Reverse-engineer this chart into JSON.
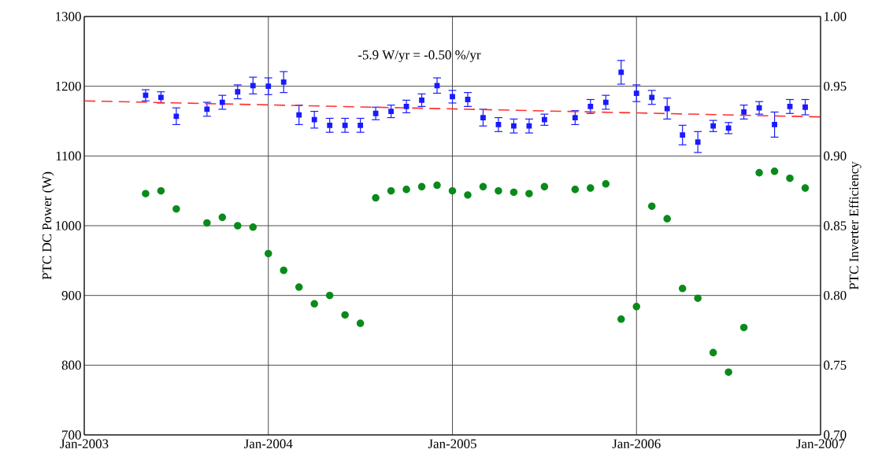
{
  "chart_data": {
    "type": "scatter",
    "annotations": [
      "-5.9 W/yr = -0.50 %/yr"
    ],
    "ylabel": "PTC DC Power (W)",
    "y2label": "PTC Inverter Efficiency",
    "xlim": [
      "2003-01",
      "2007-01"
    ],
    "xticks": [
      {
        "value": "2003-01",
        "label": "Jan-2003"
      },
      {
        "value": "2004-01",
        "label": "Jan-2004"
      },
      {
        "value": "2005-01",
        "label": "Jan-2005"
      },
      {
        "value": "2006-01",
        "label": "Jan-2006"
      },
      {
        "value": "2007-01",
        "label": "Jan-2007"
      }
    ],
    "ylim": [
      700,
      1300
    ],
    "yticks": [
      700,
      800,
      900,
      1000,
      1100,
      1200,
      1300
    ],
    "y2lim": [
      0.7,
      1.0
    ],
    "y2ticks": [
      {
        "value": 0.7,
        "label": "0.70"
      },
      {
        "value": 0.75,
        "label": "0.75"
      },
      {
        "value": 0.8,
        "label": "0.80"
      },
      {
        "value": 0.85,
        "label": "0.85"
      },
      {
        "value": 0.9,
        "label": "0.90"
      },
      {
        "value": 0.95,
        "label": "0.95"
      },
      {
        "value": 1.0,
        "label": "1.00"
      }
    ],
    "grid": true,
    "series": [
      {
        "color": "#1a1aff",
        "marker": "square",
        "x": [
          "2003-05",
          "2003-06",
          "2003-07",
          "2003-09",
          "2003-10",
          "2003-11",
          "2003-12",
          "2004-01",
          "2004-02",
          "2004-03",
          "2004-04",
          "2004-05",
          "2004-06",
          "2004-07",
          "2004-08",
          "2004-09",
          "2004-10",
          "2004-11",
          "2004-12",
          "2005-01",
          "2005-02",
          "2005-03",
          "2005-04",
          "2005-05",
          "2005-06",
          "2005-07",
          "2005-09",
          "2005-10",
          "2005-11",
          "2005-12",
          "2006-01",
          "2006-02",
          "2006-03",
          "2006-04",
          "2006-05",
          "2006-06",
          "2006-07",
          "2006-08",
          "2006-09",
          "2006-10",
          "2006-11",
          "2006-12"
        ],
        "values": [
          1187,
          1184,
          1157,
          1167,
          1177,
          1192,
          1201,
          1200,
          1206,
          1159,
          1152,
          1144,
          1144,
          1144,
          1161,
          1164,
          1171,
          1180,
          1201,
          1185,
          1181,
          1155,
          1145,
          1143,
          1143,
          1152,
          1155,
          1171,
          1177,
          1220,
          1190,
          1184,
          1168,
          1130,
          1120,
          1143,
          1140,
          1163,
          1169,
          1145,
          1171,
          1170
        ],
        "errors": [
          8,
          8,
          12,
          10,
          10,
          10,
          12,
          12,
          15,
          14,
          12,
          10,
          10,
          10,
          9,
          9,
          9,
          9,
          11,
          9,
          10,
          12,
          10,
          10,
          10,
          8,
          10,
          10,
          10,
          17,
          12,
          10,
          15,
          14,
          15,
          8,
          8,
          10,
          9,
          18,
          10,
          11
        ]
      },
      {
        "color": "#0a8a1a",
        "marker": "circle",
        "axis": "y2",
        "x": [
          "2003-05",
          "2003-06",
          "2003-07",
          "2003-09",
          "2003-10",
          "2003-11",
          "2003-12",
          "2004-01",
          "2004-02",
          "2004-03",
          "2004-04",
          "2004-05",
          "2004-06",
          "2004-07",
          "2004-08",
          "2004-09",
          "2004-10",
          "2004-11",
          "2004-12",
          "2005-01",
          "2005-02",
          "2005-03",
          "2005-04",
          "2005-05",
          "2005-06",
          "2005-07",
          "2005-09",
          "2005-10",
          "2005-11",
          "2005-12",
          "2006-01",
          "2006-02",
          "2006-03",
          "2006-04",
          "2006-05",
          "2006-06",
          "2006-07",
          "2006-08",
          "2006-09",
          "2006-10",
          "2006-11",
          "2006-12"
        ],
        "values": [
          0.873,
          0.875,
          0.862,
          0.852,
          0.856,
          0.85,
          0.849,
          0.83,
          0.818,
          0.806,
          0.794,
          0.8,
          0.786,
          0.78,
          0.87,
          0.875,
          0.876,
          0.878,
          0.879,
          0.875,
          0.872,
          0.878,
          0.875,
          0.874,
          0.873,
          0.878,
          0.876,
          0.877,
          0.88,
          0.783,
          0.792,
          0.864,
          0.855,
          0.805,
          0.798,
          0.759,
          0.745,
          0.777,
          0.888,
          0.889,
          0.884,
          0.877
        ]
      },
      {
        "type": "line",
        "color": "#ff3030",
        "line_style": "dashed",
        "marker": "none",
        "x": [
          "2003-01",
          "2007-01"
        ],
        "values": [
          1179,
          1156
        ]
      }
    ]
  }
}
